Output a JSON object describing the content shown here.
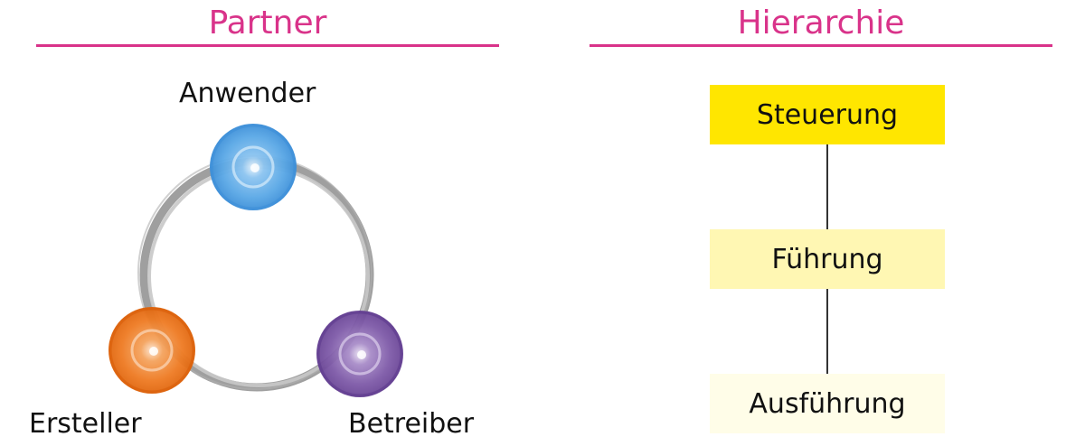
{
  "partner": {
    "title": "Partner",
    "nodes": [
      {
        "label": "Anwender",
        "color": "#5aa8e6"
      },
      {
        "label": "Ersteller",
        "color": "#ee7a22"
      },
      {
        "label": "Betreiber",
        "color": "#7e5aa8"
      }
    ],
    "ring_color": "#9a9a9a"
  },
  "hierarchie": {
    "title": "Hierarchie",
    "levels": [
      {
        "label": "Steuerung",
        "color": "#ffe600"
      },
      {
        "label": "Führung",
        "color": "#fff7b3"
      },
      {
        "label": "Ausführung",
        "color": "#fffde8"
      }
    ]
  },
  "colors": {
    "accent": "#d9338a"
  }
}
